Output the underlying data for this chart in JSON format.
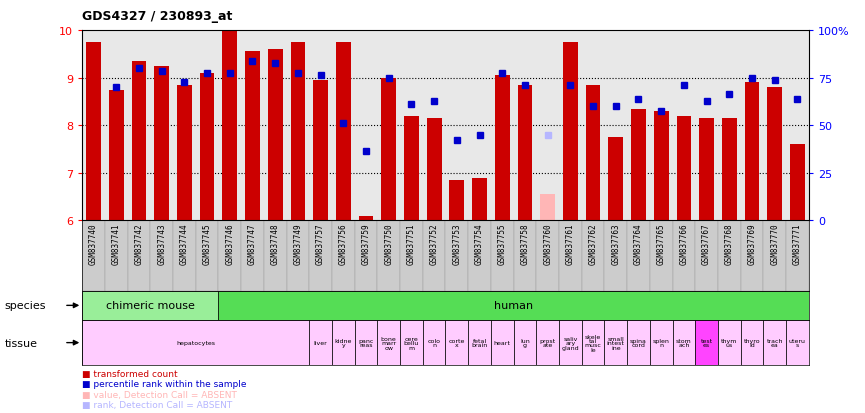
{
  "title": "GDS4327 / 230893_at",
  "gsm_labels": [
    "GSM837740",
    "GSM837741",
    "GSM837742",
    "GSM837743",
    "GSM837744",
    "GSM837745",
    "GSM837746",
    "GSM837747",
    "GSM837748",
    "GSM837749",
    "GSM837757",
    "GSM837756",
    "GSM837759",
    "GSM837750",
    "GSM837751",
    "GSM837752",
    "GSM837753",
    "GSM837754",
    "GSM837755",
    "GSM837758",
    "GSM837760",
    "GSM837761",
    "GSM837762",
    "GSM837763",
    "GSM837764",
    "GSM837765",
    "GSM837766",
    "GSM837767",
    "GSM837768",
    "GSM837769",
    "GSM837770",
    "GSM837771"
  ],
  "bar_values": [
    9.75,
    8.75,
    9.35,
    9.25,
    8.85,
    9.1,
    10.0,
    9.55,
    9.6,
    9.75,
    8.95,
    9.75,
    6.1,
    9.0,
    8.2,
    8.15,
    6.85,
    6.9,
    9.05,
    8.85,
    6.55,
    9.75,
    8.85,
    7.75,
    8.35,
    8.3,
    8.2,
    8.15,
    8.15,
    8.9,
    8.8,
    7.6
  ],
  "rank_values": [
    null,
    8.8,
    9.2,
    9.15,
    8.9,
    9.1,
    9.1,
    9.35,
    9.3,
    9.1,
    9.05,
    8.05,
    7.45,
    9.0,
    8.45,
    8.5,
    7.7,
    7.8,
    9.1,
    8.85,
    7.8,
    8.85,
    8.4,
    8.4,
    8.55,
    8.3,
    8.85,
    8.5,
    8.65,
    9.0,
    8.95,
    8.55
  ],
  "absent_bar": [
    null,
    null,
    null,
    null,
    null,
    null,
    null,
    null,
    null,
    null,
    null,
    null,
    null,
    null,
    null,
    null,
    null,
    null,
    null,
    null,
    6.55,
    null,
    null,
    null,
    null,
    null,
    null,
    null,
    null,
    null,
    null,
    null
  ],
  "absent_rank": [
    null,
    null,
    null,
    null,
    null,
    null,
    null,
    null,
    null,
    null,
    null,
    null,
    null,
    null,
    null,
    null,
    null,
    null,
    null,
    null,
    7.8,
    null,
    null,
    null,
    null,
    null,
    null,
    null,
    null,
    null,
    null,
    null
  ],
  "ylim_left": [
    6,
    10
  ],
  "ylim_right": [
    0,
    100
  ],
  "yticks_left": [
    6,
    7,
    8,
    9,
    10
  ],
  "yticks_right": [
    0,
    25,
    50,
    75,
    100
  ],
  "bar_color": "#cc0000",
  "rank_color": "#0000cc",
  "absent_bar_color": "#ffb6b6",
  "absent_rank_color": "#b6b6ff",
  "bar_width": 0.65,
  "species_groups": [
    {
      "label": "chimeric mouse",
      "start": 0,
      "end": 5,
      "color": "#99ee99"
    },
    {
      "label": "human",
      "start": 6,
      "end": 31,
      "color": "#55dd55"
    }
  ],
  "tissue_groups": [
    {
      "label": "hepatocytes",
      "start": 0,
      "end": 9,
      "color": "#ffccff"
    },
    {
      "label": "liver",
      "start": 10,
      "end": 10,
      "color": "#ffccff"
    },
    {
      "label": "kidne\ny",
      "start": 11,
      "end": 11,
      "color": "#ffccff"
    },
    {
      "label": "panc\nreas",
      "start": 12,
      "end": 12,
      "color": "#ffccff"
    },
    {
      "label": "bone\nmarr\now",
      "start": 13,
      "end": 13,
      "color": "#ffccff"
    },
    {
      "label": "cere\nbellu\nm",
      "start": 14,
      "end": 14,
      "color": "#ffccff"
    },
    {
      "label": "colo\nn",
      "start": 15,
      "end": 15,
      "color": "#ffccff"
    },
    {
      "label": "corte\nx",
      "start": 16,
      "end": 16,
      "color": "#ffccff"
    },
    {
      "label": "fetal\nbrain",
      "start": 17,
      "end": 17,
      "color": "#ffccff"
    },
    {
      "label": "heart",
      "start": 18,
      "end": 18,
      "color": "#ffccff"
    },
    {
      "label": "lun\ng",
      "start": 19,
      "end": 19,
      "color": "#ffccff"
    },
    {
      "label": "prost\nate",
      "start": 20,
      "end": 20,
      "color": "#ffccff"
    },
    {
      "label": "saliv\nary\ngland",
      "start": 21,
      "end": 21,
      "color": "#ffccff"
    },
    {
      "label": "skele\ntal\nmusc\nle",
      "start": 22,
      "end": 22,
      "color": "#ffccff"
    },
    {
      "label": "small\nintest\nine",
      "start": 23,
      "end": 23,
      "color": "#ffccff"
    },
    {
      "label": "spina\ncord",
      "start": 24,
      "end": 24,
      "color": "#ffccff"
    },
    {
      "label": "splen\nn",
      "start": 25,
      "end": 25,
      "color": "#ffccff"
    },
    {
      "label": "stom\nach",
      "start": 26,
      "end": 26,
      "color": "#ffccff"
    },
    {
      "label": "test\nes",
      "start": 27,
      "end": 27,
      "color": "#ff44ff"
    },
    {
      "label": "thym\nus",
      "start": 28,
      "end": 28,
      "color": "#ffccff"
    },
    {
      "label": "thyro\nid",
      "start": 29,
      "end": 29,
      "color": "#ffccff"
    },
    {
      "label": "trach\nea",
      "start": 30,
      "end": 30,
      "color": "#ffccff"
    },
    {
      "label": "uteru\ns",
      "start": 31,
      "end": 31,
      "color": "#ffccff"
    }
  ],
  "legend": [
    {
      "text": "transformed count",
      "color": "#cc0000"
    },
    {
      "text": "percentile rank within the sample",
      "color": "#0000cc"
    },
    {
      "text": "value, Detection Call = ABSENT",
      "color": "#ffb6b6"
    },
    {
      "text": "rank, Detection Call = ABSENT",
      "color": "#b6b6ff"
    }
  ]
}
